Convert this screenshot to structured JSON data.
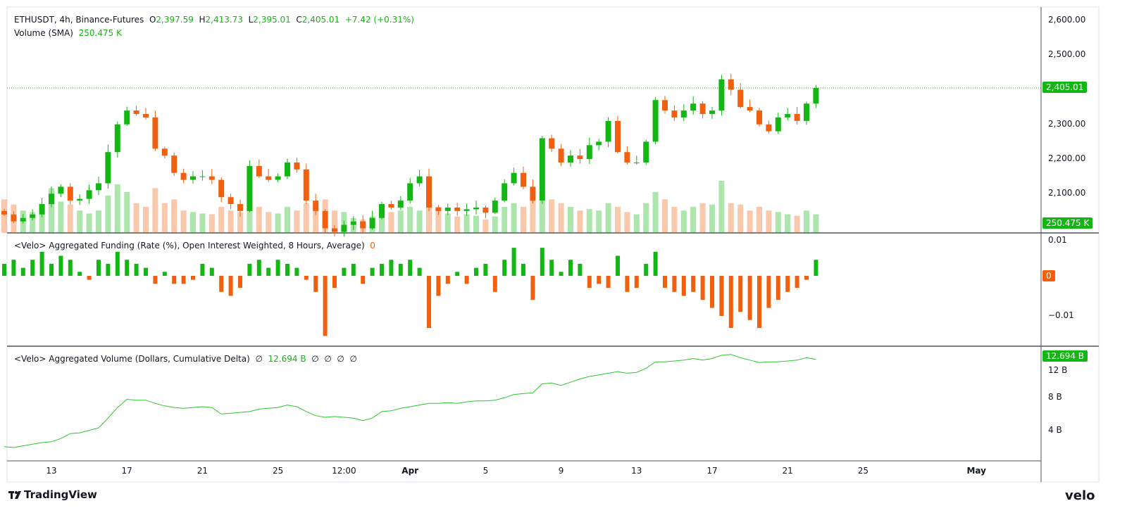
{
  "legend": {
    "symbol": "ETHUSDT, 4h, Binance-Futures",
    "o_label": "O",
    "o_value": "2,397.59",
    "h_label": "H",
    "h_value": "2,413.73",
    "l_label": "L",
    "l_value": "2,395.01",
    "c_label": "C",
    "c_value": "2,405.01",
    "change": "+7.42 (+0.31%)",
    "volume_label": "Volume (SMA)",
    "volume_value": "250.475 K"
  },
  "funding_legend": {
    "title": "<Velo> Aggregated Funding (Rate (%), Open Interest Weighted, 8 Hours, Average)",
    "value": "0"
  },
  "cvd_legend": {
    "title": "<Velo> Aggregated Volume (Dollars, Cumulative Delta)",
    "value": "12.694 B",
    "empty1": "∅",
    "empty2": "∅",
    "empty3": "∅",
    "empty4": "∅",
    "empty5": "∅"
  },
  "badges": {
    "price": "2,405.01",
    "volume": "250.475 K",
    "funding": "0",
    "cvd": "12.694 B"
  },
  "colors": {
    "up": "#13b713",
    "down": "#f2600f",
    "line": "#2ec52e",
    "grid": "#e0e3eb"
  },
  "footer": {
    "brand": "TradingView",
    "brand_icon": "tradingview-logo",
    "partner": "velo"
  },
  "chart_data": [
    {
      "type": "candlestick",
      "title": "ETHUSDT, 4h, Binance-Futures",
      "y_ticks": [
        {
          "value": 2600,
          "label": "2,600.00"
        },
        {
          "value": 2500,
          "label": "2,500.00"
        },
        {
          "value": 2300,
          "label": "2,300.00"
        },
        {
          "value": 2200,
          "label": "2,200.00"
        },
        {
          "value": 2100,
          "label": "2,100.00"
        }
      ],
      "last_price": 2405.01,
      "columns": [
        "time",
        "close",
        "volume_k"
      ],
      "points": [
        [
          "Mar 10 12:00",
          2040,
          450
        ],
        [
          "Mar 11 00:00",
          2020,
          380
        ],
        [
          "Mar 11 12:00",
          2030,
          300
        ],
        [
          "Mar 12 00:00",
          2040,
          280
        ],
        [
          "Mar 12 12:00",
          2070,
          350
        ],
        [
          "Mar 13 00:00",
          2100,
          600
        ],
        [
          "Mar 13 12:00",
          2120,
          420
        ],
        [
          "Mar 14 00:00",
          2080,
          380
        ],
        [
          "Mar 14 12:00",
          2085,
          300
        ],
        [
          "Mar 15 00:00",
          2110,
          260
        ],
        [
          "Mar 15 12:00",
          2130,
          300
        ],
        [
          "Mar 16 00:00",
          2220,
          500
        ],
        [
          "Mar 16 12:00",
          2300,
          650
        ],
        [
          "Mar 17 00:00",
          2340,
          550
        ],
        [
          "Mar 17 12:00",
          2330,
          400
        ],
        [
          "Mar 18 00:00",
          2320,
          350
        ],
        [
          "Mar 18 12:00",
          2230,
          600
        ],
        [
          "Mar 19 00:00",
          2210,
          400
        ],
        [
          "Mar 19 12:00",
          2160,
          450
        ],
        [
          "Mar 20 00:00",
          2140,
          300
        ],
        [
          "Mar 20 12:00",
          2150,
          280
        ],
        [
          "Mar 21 00:00",
          2150,
          260
        ],
        [
          "Mar 21 12:00",
          2140,
          250
        ],
        [
          "Mar 22 00:00",
          2090,
          350
        ],
        [
          "Mar 22 12:00",
          2070,
          300
        ],
        [
          "Mar 23 00:00",
          2050,
          280
        ],
        [
          "Mar 23 12:00",
          2180,
          450
        ],
        [
          "Mar 24 00:00",
          2150,
          350
        ],
        [
          "Mar 24 12:00",
          2140,
          280
        ],
        [
          "Mar 25 00:00",
          2150,
          260
        ],
        [
          "Mar 25 12:00",
          2190,
          350
        ],
        [
          "Mar 26 00:00",
          2170,
          300
        ],
        [
          "Mar 26 12:00",
          2080,
          400
        ],
        [
          "Mar 27 00:00",
          2050,
          350
        ],
        [
          "Mar 27 12:00",
          2000,
          450
        ],
        [
          "Mar 28 00:00",
          1990,
          300
        ],
        [
          "Mar 28 12:00",
          2010,
          280
        ],
        [
          "Mar 29 00:00",
          2020,
          200
        ],
        [
          "Mar 29 12:00",
          2000,
          180
        ],
        [
          "Mar 30 00:00",
          2030,
          220
        ],
        [
          "Mar 30 12:00",
          2070,
          300
        ],
        [
          "Mar 31 00:00",
          2060,
          280
        ],
        [
          "Mar 31 12:00",
          2080,
          300
        ],
        [
          "Apr 1 00:00",
          2130,
          350
        ],
        [
          "Apr 1 12:00",
          2150,
          300
        ],
        [
          "Apr 2 00:00",
          2060,
          500
        ],
        [
          "Apr 2 12:00",
          2050,
          350
        ],
        [
          "Apr 3 00:00",
          2060,
          260
        ],
        [
          "Apr 3 12:00",
          2050,
          220
        ],
        [
          "Apr 4 00:00",
          2055,
          250
        ],
        [
          "Apr 4 12:00",
          2060,
          230
        ],
        [
          "Apr 5 00:00",
          2045,
          180
        ],
        [
          "Apr 5 12:00",
          2080,
          220
        ],
        [
          "Apr 6 00:00",
          2130,
          350
        ],
        [
          "Apr 6 12:00",
          2160,
          400
        ],
        [
          "Apr 7 00:00",
          2120,
          350
        ],
        [
          "Apr 7 12:00",
          2080,
          450
        ],
        [
          "Apr 8 00:00",
          2260,
          550
        ],
        [
          "Apr 8 12:00",
          2230,
          450
        ],
        [
          "Apr 9 00:00",
          2190,
          400
        ],
        [
          "Apr 9 12:00",
          2210,
          350
        ],
        [
          "Apr 10 00:00",
          2200,
          300
        ],
        [
          "Apr 10 12:00",
          2240,
          320
        ],
        [
          "Apr 11 00:00",
          2250,
          300
        ],
        [
          "Apr 11 12:00",
          2310,
          400
        ],
        [
          "Apr 12 00:00",
          2220,
          350
        ],
        [
          "Apr 12 12:00",
          2190,
          280
        ],
        [
          "Apr 13 00:00",
          2190,
          250
        ],
        [
          "Apr 13 12:00",
          2250,
          400
        ],
        [
          "Apr 14 00:00",
          2370,
          550
        ],
        [
          "Apr 14 12:00",
          2340,
          450
        ],
        [
          "Apr 15 00:00",
          2320,
          350
        ],
        [
          "Apr 15 12:00",
          2340,
          300
        ],
        [
          "Apr 16 00:00",
          2360,
          350
        ],
        [
          "Apr 16 12:00",
          2330,
          400
        ],
        [
          "Apr 17 00:00",
          2340,
          380
        ],
        [
          "Apr 17 12:00",
          2430,
          700
        ],
        [
          "Apr 18 00:00",
          2400,
          400
        ],
        [
          "Apr 18 12:00",
          2350,
          380
        ],
        [
          "Apr 19 00:00",
          2340,
          300
        ],
        [
          "Apr 19 12:00",
          2300,
          350
        ],
        [
          "Apr 20 00:00",
          2280,
          300
        ],
        [
          "Apr 20 12:00",
          2320,
          280
        ],
        [
          "Apr 21 00:00",
          2330,
          250
        ],
        [
          "Apr 21 12:00",
          2310,
          230
        ],
        [
          "Apr 22 00:00",
          2360,
          300
        ],
        [
          "Apr 22 12:00",
          2405.01,
          250
        ]
      ]
    },
    {
      "type": "bar",
      "title": "<Velo> Aggregated Funding (Rate (%), Open Interest Weighted, 8 Hours, Average)",
      "y_ticks": [
        {
          "value": 0.01,
          "label": "0.01"
        },
        {
          "value": -0.01,
          "label": "−0.01"
        }
      ],
      "values": [
        0.003,
        0.004,
        0.002,
        0.004,
        0.006,
        0.003,
        0.005,
        0.004,
        0.001,
        -0.001,
        0.004,
        0.003,
        0.006,
        0.004,
        0.003,
        0.002,
        -0.002,
        0.001,
        -0.002,
        -0.002,
        -0.001,
        0.003,
        0.002,
        -0.004,
        -0.005,
        -0.003,
        0.003,
        0.004,
        0.002,
        0.004,
        0.003,
        0.002,
        -0.001,
        -0.004,
        -0.015,
        -0.003,
        0.002,
        0.003,
        -0.002,
        0.002,
        0.003,
        0.004,
        0.003,
        0.004,
        0.002,
        -0.013,
        -0.005,
        -0.002,
        0.001,
        -0.002,
        0.002,
        0.003,
        -0.004,
        0.004,
        0.007,
        0.003,
        -0.006,
        0.007,
        0.004,
        0.001,
        0.004,
        0.003,
        -0.003,
        -0.002,
        -0.003,
        0.005,
        -0.004,
        -0.003,
        0.003,
        0.006,
        -0.003,
        -0.004,
        -0.005,
        -0.004,
        -0.006,
        -0.008,
        -0.01,
        -0.013,
        -0.009,
        -0.011,
        -0.013,
        -0.008,
        -0.006,
        -0.004,
        -0.003,
        -0.001,
        0.004
      ]
    },
    {
      "type": "line",
      "title": "<Velo> Aggregated Volume (Dollars, Cumulative Delta)",
      "y_ticks": [
        {
          "value": 12,
          "label": "12 B"
        },
        {
          "value": 8,
          "label": "8 B"
        },
        {
          "value": 4,
          "label": "4 B"
        }
      ],
      "unit": "B",
      "values": [
        2.0,
        1.9,
        2.1,
        2.3,
        2.5,
        2.6,
        3.0,
        3.6,
        3.7,
        4.0,
        4.3,
        5.5,
        6.8,
        7.8,
        7.7,
        7.7,
        7.3,
        7.0,
        6.8,
        6.7,
        6.8,
        6.9,
        6.8,
        6.0,
        6.1,
        6.2,
        6.3,
        6.6,
        6.7,
        6.8,
        7.1,
        6.9,
        6.3,
        5.8,
        5.6,
        5.7,
        5.6,
        5.5,
        5.2,
        5.5,
        6.3,
        6.4,
        6.7,
        6.9,
        7.1,
        7.3,
        7.3,
        7.4,
        7.3,
        7.5,
        7.6,
        7.6,
        7.7,
        8.0,
        8.4,
        8.5,
        8.6,
        9.7,
        9.8,
        9.5,
        9.9,
        10.3,
        10.6,
        10.8,
        11.0,
        11.2,
        11.0,
        11.1,
        11.6,
        12.4,
        12.4,
        12.5,
        12.6,
        12.8,
        12.6,
        12.8,
        13.2,
        13.3,
        12.9,
        12.6,
        12.3,
        12.4,
        12.4,
        12.5,
        12.6,
        12.9,
        12.694
      ]
    }
  ],
  "x_ticks": [
    {
      "label": "13",
      "date": "Mar 13 00:00"
    },
    {
      "label": "17",
      "date": "Mar 17 00:00"
    },
    {
      "label": "21",
      "date": "Mar 21 00:00"
    },
    {
      "label": "25",
      "date": "Mar 25 00:00"
    },
    {
      "label": "12:00",
      "date": "Mar 28 12:00"
    },
    {
      "label": "Apr",
      "date": "Apr 1 00:00",
      "bold": true
    },
    {
      "label": "5",
      "date": "Apr 5 00:00"
    },
    {
      "label": "9",
      "date": "Apr 9 00:00"
    },
    {
      "label": "13",
      "date": "Apr 13 00:00"
    },
    {
      "label": "17",
      "date": "Apr 17 00:00"
    },
    {
      "label": "21",
      "date": "Apr 21 00:00"
    },
    {
      "label": "25",
      "date": "Apr 25 00:00"
    },
    {
      "label": "May",
      "date": "May 1 00:00",
      "bold": true
    }
  ]
}
